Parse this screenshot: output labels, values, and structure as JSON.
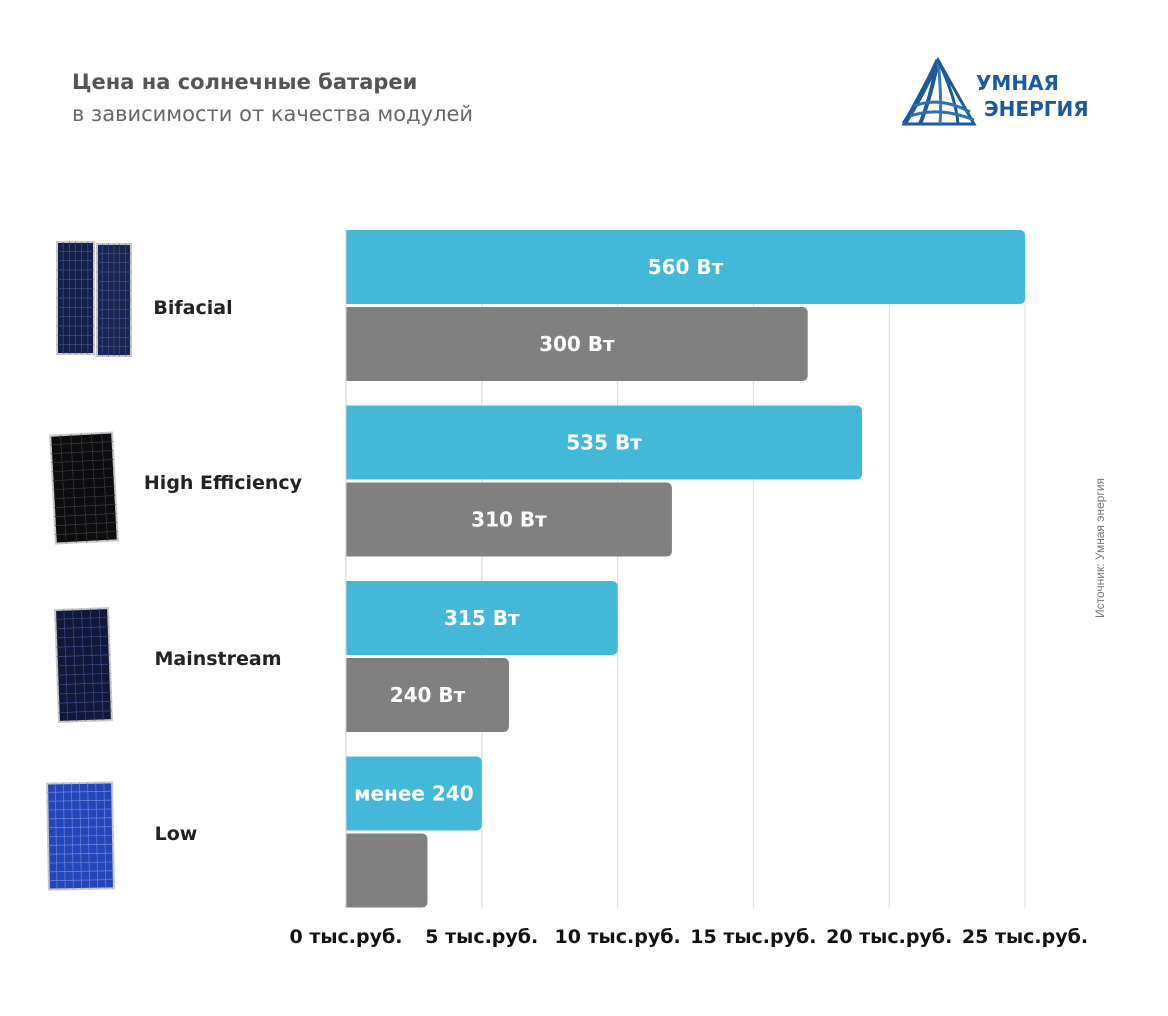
{
  "header": {
    "title": "Цена на солнечные батареи",
    "subtitle": "в зависимости от качества модулей"
  },
  "logo": {
    "line1": "УМНАЯ",
    "line2": "ЭНЕРГИЯ"
  },
  "source": "Источник: Умная энергия",
  "colors": {
    "bar_primary": "#43b8d8",
    "bar_secondary": "#7f807f",
    "logo_blue": "#1d5a9c"
  },
  "icons": [
    "bifacial-panel-icon",
    "high-efficiency-panel-icon",
    "mainstream-panel-icon",
    "low-panel-icon"
  ],
  "chart_data": {
    "type": "bar",
    "orientation": "horizontal",
    "xlim": [
      0,
      25
    ],
    "x_ticks": [
      {
        "value": 0,
        "label": "0 тыс.руб."
      },
      {
        "value": 5,
        "label": "5 тыс.руб."
      },
      {
        "value": 10,
        "label": "10 тыс.руб."
      },
      {
        "value": 15,
        "label": "15 тыс.руб."
      },
      {
        "value": 20,
        "label": "20 тыс.руб."
      },
      {
        "value": 25,
        "label": "25 тыс.руб."
      }
    ],
    "grid": true,
    "categories": [
      {
        "name": "Bifacial",
        "bars": [
          {
            "value": 25,
            "label": "560 Вт",
            "color": "#43b8d8"
          },
          {
            "value": 17,
            "label": "300 Вт",
            "color": "#7f807f"
          }
        ]
      },
      {
        "name": "High Efficiency",
        "bars": [
          {
            "value": 19,
            "label": "535 Вт",
            "color": "#43b8d8"
          },
          {
            "value": 12,
            "label": "310 Вт",
            "color": "#7f807f"
          }
        ]
      },
      {
        "name": "Mainstream",
        "bars": [
          {
            "value": 10,
            "label": "315 Вт",
            "color": "#43b8d8"
          },
          {
            "value": 6,
            "label": "240 Вт",
            "color": "#7f807f"
          }
        ]
      },
      {
        "name": "Low",
        "bars": [
          {
            "value": 5,
            "label": "менее 240",
            "color": "#43b8d8"
          },
          {
            "value": 3,
            "label": "",
            "color": "#7f807f"
          }
        ]
      }
    ]
  }
}
